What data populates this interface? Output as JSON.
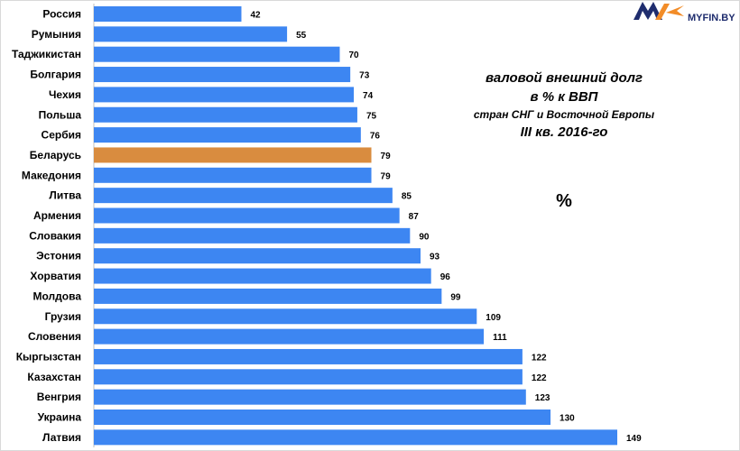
{
  "logo": {
    "text": "MYFIN.BY"
  },
  "title": {
    "line1": "валовой внешний долг",
    "line2": "в % к ВВП",
    "line3": "стран СНГ и Восточной Европы",
    "line4": "III кв. 2016-го"
  },
  "unit_label": "%",
  "colors": {
    "bar": "#3d86f2",
    "highlight": "#d98c3f"
  },
  "chart_data": {
    "type": "bar",
    "orientation": "horizontal",
    "categories": [
      "Россия",
      "Румыния",
      "Таджикистан",
      "Болгария",
      "Чехия",
      "Польша",
      "Сербия",
      "Беларусь",
      "Македония",
      "Литва",
      "Армения",
      "Словакия",
      "Эстония",
      "Хорватия",
      "Молдова",
      "Грузия",
      "Словения",
      "Кыргызстан",
      "Казахстан",
      "Венгрия",
      "Украина",
      "Латвия"
    ],
    "values": [
      42,
      55,
      70,
      73,
      74,
      75,
      76,
      79,
      79,
      85,
      87,
      90,
      93,
      96,
      99,
      109,
      111,
      122,
      122,
      123,
      130,
      149
    ],
    "highlight_category": "Беларусь",
    "xlim": [
      0,
      155
    ],
    "grid": false
  }
}
